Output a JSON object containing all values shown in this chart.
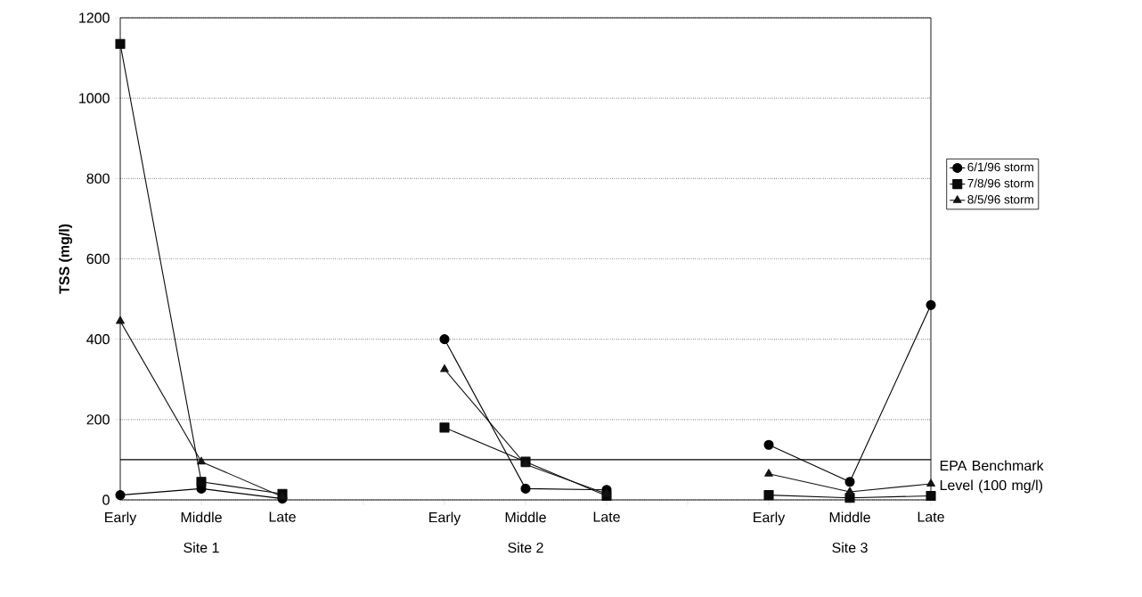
{
  "chart_data": {
    "type": "line",
    "ylabel": "TSS (mg/l)",
    "categories": [
      "Early",
      "Middle",
      "Late",
      null,
      "Early",
      "Middle",
      "Late",
      null,
      "Early",
      "Middle",
      "Late"
    ],
    "series": [
      {
        "name": "6/1/96 storm",
        "color": "#000000",
        "marker": "circle",
        "values": [
          12,
          28,
          3,
          null,
          400,
          28,
          25,
          null,
          137,
          45,
          485
        ]
      },
      {
        "name": "7/8/96 storm",
        "color": "#0a0a0a",
        "marker": "square",
        "values": [
          1135,
          45,
          15,
          null,
          180,
          95,
          10,
          null,
          12,
          5,
          10
        ]
      },
      {
        "name": "8/5/96 storm",
        "color": "#141414",
        "marker": "triangle",
        "values": [
          445,
          95,
          8,
          null,
          325,
          88,
          15,
          null,
          65,
          20,
          40
        ]
      }
    ],
    "ylim": [
      0,
      1200
    ],
    "yticks": [
      0,
      200,
      400,
      600,
      800,
      1000,
      1200
    ],
    "grid": "y",
    "legend": "right",
    "line_style": "solid",
    "ref_lines": [
      {
        "axis": "y",
        "value": 100,
        "label": "EPA Benchmark Level (100 mg/l)",
        "color": "#000000"
      }
    ],
    "annotations": [
      "Site 1",
      "Site 2",
      "Site 3"
    ]
  }
}
